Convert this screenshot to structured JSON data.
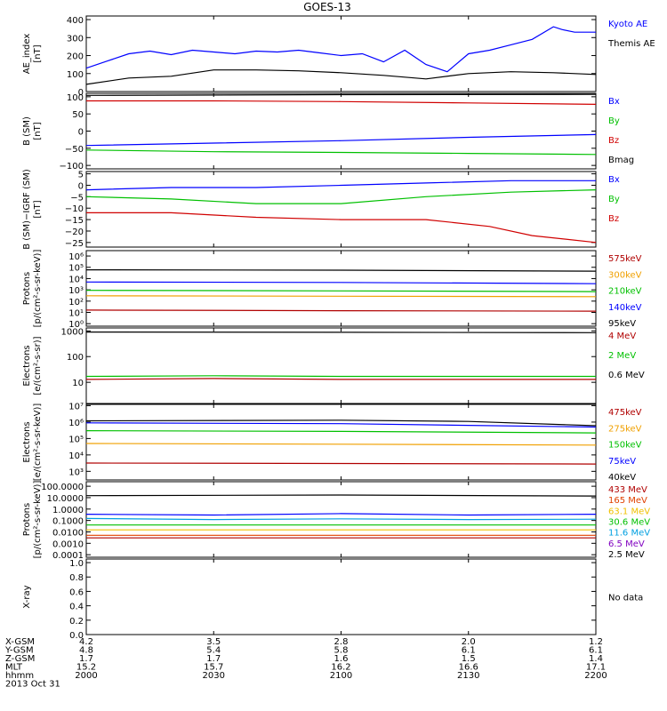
{
  "chart_data": {
    "type": "line",
    "title": "GOES-13",
    "date_label": "2013 Oct 31",
    "x_axis": {
      "tick_labels": [
        "2000",
        "2030",
        "2100",
        "2130",
        "2200"
      ],
      "rows": [
        {
          "label": "X-GSM",
          "values": [
            "4.2",
            "3.5",
            "2.8",
            "2.0",
            "1.2"
          ]
        },
        {
          "label": "Y-GSM",
          "values": [
            "4.8",
            "5.4",
            "5.8",
            "6.1",
            "6.1"
          ]
        },
        {
          "label": "Z-GSM",
          "values": [
            "1.7",
            "1.7",
            "1.6",
            "1.5",
            "1.4"
          ]
        },
        {
          "label": "MLT",
          "values": [
            "15.2",
            "15.7",
            "16.2",
            "16.6",
            "17.1"
          ]
        },
        {
          "label": "hhmm",
          "values": [
            "2000",
            "2030",
            "2100",
            "2130",
            "2200"
          ]
        }
      ]
    },
    "panels": [
      {
        "ylabel": [
          "AE_index",
          "[nT]"
        ],
        "scale": "linear",
        "ylim": [
          0,
          420
        ],
        "ticks": [
          {
            "v": 0,
            "label": "0"
          },
          {
            "v": 100,
            "label": "100"
          },
          {
            "v": 200,
            "label": "200"
          },
          {
            "v": 300,
            "label": "300"
          },
          {
            "v": 400,
            "label": "400"
          }
        ],
        "legend": [
          {
            "text": "Kyoto AE",
            "color": "#0000ff"
          },
          {
            "text": "Themis AE",
            "color": "#000000"
          }
        ],
        "series": [
          {
            "name": "Kyoto AE",
            "color": "#0000ff",
            "x": [
              0,
              5,
              10,
              15,
              20,
              25,
              30,
              35,
              40,
              45,
              50,
              55,
              60,
              65,
              70,
              75,
              80,
              85,
              90,
              95,
              100,
              105,
              110,
              112,
              115,
              120
            ],
            "y": [
              130,
              170,
              210,
              225,
              205,
              230,
              220,
              210,
              225,
              220,
              230,
              215,
              200,
              210,
              165,
              230,
              150,
              110,
              210,
              230,
              260,
              290,
              360,
              345,
              330,
              330
            ]
          },
          {
            "name": "Themis AE",
            "color": "#000000",
            "x": [
              0,
              10,
              20,
              30,
              40,
              50,
              60,
              70,
              80,
              90,
              100,
              110,
              120
            ],
            "y": [
              40,
              75,
              85,
              120,
              120,
              115,
              105,
              90,
              70,
              100,
              110,
              105,
              95
            ]
          }
        ]
      },
      {
        "ylabel": [
          "B (SM)",
          "[nT]"
        ],
        "scale": "linear",
        "ylim": [
          -110,
          110
        ],
        "ticks": [
          {
            "v": -100,
            "label": "−100"
          },
          {
            "v": -50,
            "label": "−50"
          },
          {
            "v": 0,
            "label": "0"
          },
          {
            "v": 50,
            "label": "50"
          },
          {
            "v": 100,
            "label": "100"
          }
        ],
        "legend": [
          {
            "text": "Bx",
            "color": "#0000ff"
          },
          {
            "text": "By",
            "color": "#00c000"
          },
          {
            "text": "Bz",
            "color": "#d00000"
          },
          {
            "text": "Bmag",
            "color": "#000000"
          }
        ],
        "series": [
          {
            "name": "Bmag",
            "color": "#000000",
            "x": [
              0,
              60,
              120
            ],
            "y": [
              104,
              106,
              107
            ]
          },
          {
            "name": "Bz",
            "color": "#d00000",
            "x": [
              0,
              30,
              60,
              90,
              120
            ],
            "y": [
              88,
              88,
              86,
              82,
              78
            ]
          },
          {
            "name": "Bx",
            "color": "#0000ff",
            "x": [
              0,
              30,
              60,
              90,
              120
            ],
            "y": [
              -42,
              -35,
              -28,
              -18,
              -10
            ]
          },
          {
            "name": "By",
            "color": "#00c000",
            "x": [
              0,
              30,
              60,
              90,
              120
            ],
            "y": [
              -55,
              -60,
              -62,
              -65,
              -68
            ]
          }
        ]
      },
      {
        "ylabel": [
          "B (SM)−IGRF (SM)",
          "[nT]"
        ],
        "scale": "linear",
        "ylim": [
          -27,
          6
        ],
        "ticks": [
          {
            "v": -25,
            "label": "−25"
          },
          {
            "v": -20,
            "label": "−20"
          },
          {
            "v": -15,
            "label": "−15"
          },
          {
            "v": -10,
            "label": "−10"
          },
          {
            "v": -5,
            "label": "−5"
          },
          {
            "v": 0,
            "label": "0"
          },
          {
            "v": 5,
            "label": "5"
          }
        ],
        "legend": [
          {
            "text": "Bx",
            "color": "#0000ff"
          },
          {
            "text": "By",
            "color": "#00c000"
          },
          {
            "text": "Bz",
            "color": "#d00000"
          }
        ],
        "series": [
          {
            "name": "Bx",
            "color": "#0000ff",
            "x": [
              0,
              20,
              40,
              60,
              80,
              100,
              120
            ],
            "y": [
              -2,
              -1,
              -1,
              0,
              1,
              2,
              2
            ]
          },
          {
            "name": "By",
            "color": "#00c000",
            "x": [
              0,
              20,
              40,
              60,
              80,
              100,
              120
            ],
            "y": [
              -5,
              -6,
              -8,
              -8,
              -5,
              -3,
              -2
            ]
          },
          {
            "name": "Bz",
            "color": "#d00000",
            "x": [
              0,
              20,
              40,
              60,
              80,
              95,
              105,
              120
            ],
            "y": [
              -12,
              -12,
              -14,
              -15,
              -15,
              -18,
              -22,
              -25
            ]
          }
        ]
      },
      {
        "ylabel": [
          "Protons",
          "[p/(cm²-s-sr-keV)]"
        ],
        "scale": "log",
        "ylim": [
          0.6,
          3000000.0
        ],
        "ticks": [
          {
            "v": 1,
            "label": "10⁰"
          },
          {
            "v": 10,
            "label": "10¹"
          },
          {
            "v": 100,
            "label": "10²"
          },
          {
            "v": 1000,
            "label": "10³"
          },
          {
            "v": 10000,
            "label": "10⁴"
          },
          {
            "v": 100000,
            "label": "10⁵"
          },
          {
            "v": 1000000,
            "label": "10⁶"
          }
        ],
        "legend": [
          {
            "text": "575keV",
            "color": "#b00000"
          },
          {
            "text": "300keV",
            "color": "#f0a000"
          },
          {
            "text": "210keV",
            "color": "#00c000"
          },
          {
            "text": "140keV",
            "color": "#0000ff"
          },
          {
            "text": "95keV",
            "color": "#000000"
          }
        ],
        "series": [
          {
            "name": "95keV",
            "color": "#000000",
            "x": [
              0,
              60,
              120
            ],
            "y": [
              60000,
              55000,
              45000
            ]
          },
          {
            "name": "140keV",
            "color": "#0000ff",
            "x": [
              0,
              60,
              120
            ],
            "y": [
              5000,
              4500,
              3500
            ]
          },
          {
            "name": "210keV",
            "color": "#00c000",
            "x": [
              0,
              60,
              120
            ],
            "y": [
              900,
              800,
              700
            ]
          },
          {
            "name": "300keV",
            "color": "#f0a000",
            "x": [
              0,
              60,
              120
            ],
            "y": [
              300,
              270,
              250
            ]
          },
          {
            "name": "575keV",
            "color": "#b00000",
            "x": [
              0,
              60,
              120
            ],
            "y": [
              16,
              14,
              13
            ]
          }
        ]
      },
      {
        "ylabel": [
          "Electrons",
          "[e/(cm²-s-sr)]"
        ],
        "scale": "log",
        "ylim": [
          1.5,
          1300
        ],
        "ticks": [
          {
            "v": 10,
            "label": "10"
          },
          {
            "v": 100,
            "label": "100"
          },
          {
            "v": 1000,
            "label": "1000"
          }
        ],
        "legend": [
          {
            "text": "4 MeV",
            "color": "#b00000"
          },
          {
            "text": "2 MeV",
            "color": "#00c000"
          },
          {
            "text": "0.6 MeV",
            "color": "#000000"
          }
        ],
        "series": [
          {
            "name": "0.6 MeV",
            "color": "#000000",
            "x": [
              0,
              60,
              120
            ],
            "y": [
              900,
              880,
              850
            ]
          },
          {
            "name": "2 MeV",
            "color": "#00c000",
            "x": [
              0,
              30,
              60,
              90,
              120
            ],
            "y": [
              17,
              18,
              17,
              17,
              17
            ]
          },
          {
            "name": "4 MeV",
            "color": "#b00000",
            "x": [
              0,
              30,
              60,
              90,
              120
            ],
            "y": [
              13,
              14,
              13,
              13,
              13
            ]
          }
        ]
      },
      {
        "ylabel": [
          "Electrons",
          "[e/(cm²-s-sr-keV)]"
        ],
        "scale": "log",
        "ylim": [
          300,
          12000000.0
        ],
        "ticks": [
          {
            "v": 1000,
            "label": "10³"
          },
          {
            "v": 10000,
            "label": "10⁴"
          },
          {
            "v": 100000,
            "label": "10⁵"
          },
          {
            "v": 1000000,
            "label": "10⁶"
          },
          {
            "v": 10000000,
            "label": "10⁷"
          }
        ],
        "legend": [
          {
            "text": "475keV",
            "color": "#b00000"
          },
          {
            "text": "275keV",
            "color": "#f0a000"
          },
          {
            "text": "150keV",
            "color": "#00c000"
          },
          {
            "text": "75keV",
            "color": "#0000ff"
          },
          {
            "text": "40keV",
            "color": "#000000"
          }
        ],
        "series": [
          {
            "name": "40keV",
            "color": "#000000",
            "x": [
              0,
              60,
              90,
              120
            ],
            "y": [
              1200000,
              1300000,
              1100000,
              600000
            ]
          },
          {
            "name": "75keV",
            "color": "#0000ff",
            "x": [
              0,
              60,
              120
            ],
            "y": [
              900000,
              800000,
              500000
            ]
          },
          {
            "name": "150keV",
            "color": "#00c000",
            "x": [
              0,
              60,
              120
            ],
            "y": [
              300000,
              270000,
              220000
            ]
          },
          {
            "name": "275keV",
            "color": "#f0a000",
            "x": [
              0,
              60,
              120
            ],
            "y": [
              50000,
              45000,
              40000
            ]
          },
          {
            "name": "475keV",
            "color": "#b00000",
            "x": [
              0,
              60,
              120
            ],
            "y": [
              3200,
              3000,
              2800
            ]
          }
        ]
      },
      {
        "ylabel": [
          "Protons",
          "[p/(cm²-s-sr-keV)]"
        ],
        "scale": "log",
        "ylim": [
          6e-05,
          250
        ],
        "ticks": [
          {
            "v": 0.0001,
            "label": "0.0001"
          },
          {
            "v": 0.001,
            "label": "0.0010"
          },
          {
            "v": 0.01,
            "label": "0.0100"
          },
          {
            "v": 0.1,
            "label": "0.1000"
          },
          {
            "v": 1,
            "label": "1.0000"
          },
          {
            "v": 10,
            "label": "10.0000"
          },
          {
            "v": 100,
            "label": "100.0000"
          }
        ],
        "legend": [
          {
            "text": "433 MeV",
            "color": "#b00000"
          },
          {
            "text": "165 MeV",
            "color": "#e04000"
          },
          {
            "text": "63.1 MeV",
            "color": "#f0c000"
          },
          {
            "text": "30.6 MeV",
            "color": "#00c000"
          },
          {
            "text": "11.6 MeV",
            "color": "#00a0e0"
          },
          {
            "text": "6.5 MeV",
            "color": "#8000c0"
          },
          {
            "text": "2.5 MeV",
            "color": "#000000"
          }
        ],
        "series": [
          {
            "name": "2.5 MeV",
            "color": "#000000",
            "x": [
              0,
              60,
              120
            ],
            "y": [
              15,
              17,
              14
            ]
          },
          {
            "name": "6.5 MeV",
            "color": "#0000ff",
            "x": [
              0,
              30,
              60,
              90,
              120
            ],
            "y": [
              0.35,
              0.3,
              0.4,
              0.3,
              0.35
            ]
          },
          {
            "name": "11.6 MeV",
            "color": "#00a0e0",
            "x": [
              0,
              30,
              60,
              90,
              120
            ],
            "y": [
              0.15,
              0.12,
              0.14,
              0.12,
              0.13
            ]
          },
          {
            "name": "30.6 MeV",
            "color": "#00c000",
            "x": [
              0,
              60,
              120
            ],
            "y": [
              0.04,
              0.04,
              0.04
            ]
          },
          {
            "name": "63.1 MeV",
            "color": "#f0c000",
            "x": [
              0,
              60,
              120
            ],
            "y": [
              0.015,
              0.015,
              0.015
            ]
          },
          {
            "name": "165 MeV",
            "color": "#e04000",
            "x": [
              0,
              60,
              120
            ],
            "y": [
              0.005,
              0.005,
              0.005
            ]
          },
          {
            "name": "433 MeV",
            "color": "#b00000",
            "x": [
              0,
              60,
              120
            ],
            "y": [
              0.003,
              0.003,
              0.003
            ]
          }
        ]
      },
      {
        "ylabel": [
          "X-ray",
          ""
        ],
        "scale": "linear",
        "ylim": [
          0,
          1.05
        ],
        "ticks": [
          {
            "v": 0,
            "label": "0.0"
          },
          {
            "v": 0.2,
            "label": "0.2"
          },
          {
            "v": 0.4,
            "label": "0.4"
          },
          {
            "v": 0.6,
            "label": "0.6"
          },
          {
            "v": 0.8,
            "label": "0.8"
          },
          {
            "v": 1.0,
            "label": "1.0"
          }
        ],
        "legend": [
          {
            "text": "No data",
            "color": "#000000"
          }
        ],
        "series": []
      }
    ]
  }
}
